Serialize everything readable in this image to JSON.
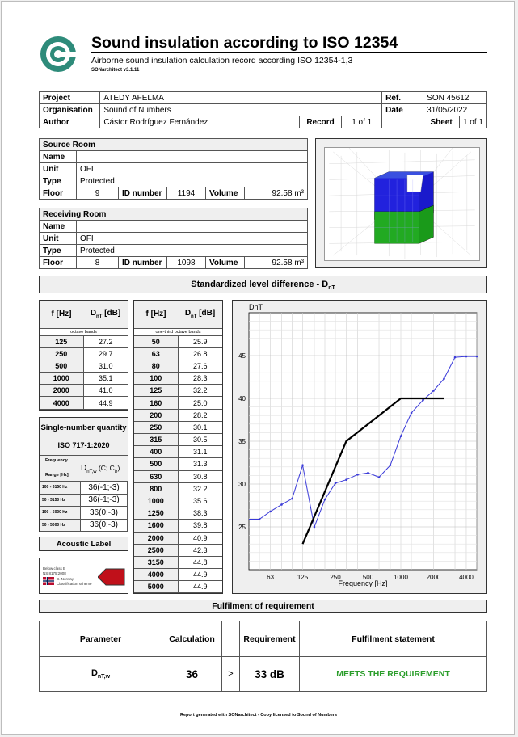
{
  "header": {
    "title": "Sound insulation according to ISO 12354",
    "subtitle": "Airborne sound insulation calculation record according ISO 12354-1,3",
    "version": "SONarchitect v3.1.11"
  },
  "info": {
    "project_label": "Project",
    "project": "ATEDY AFELMA",
    "org_label": "Organisation",
    "org": "Sound of Numbers",
    "author_label": "Author",
    "author": "Cástor Rodríguez Fernández",
    "ref_label": "Ref.",
    "ref": "SON 45612",
    "date_label": "Date",
    "date": "31/05/2022",
    "record_label": "Record",
    "record": "1 of 1",
    "sheet_label": "Sheet",
    "sheet": "1 of 1"
  },
  "source_room": {
    "title": "Source Room",
    "name_label": "Name",
    "name": "",
    "unit_label": "Unit",
    "unit": "OFI",
    "type_label": "Type",
    "type": "Protected",
    "floor_label": "Floor",
    "floor": "9",
    "id_label": "ID number",
    "id": "1194",
    "volume_label": "Volume",
    "volume": "92.58 m³"
  },
  "receiving_room": {
    "title": "Receiving Room",
    "name_label": "Name",
    "name": "",
    "unit_label": "Unit",
    "unit": "OFI",
    "type_label": "Type",
    "type": "Protected",
    "floor_label": "Floor",
    "floor": "8",
    "id_label": "ID number",
    "id": "1098",
    "volume_label": "Volume",
    "volume": "92.58 m³"
  },
  "section_title": "Standardized level difference - D",
  "section_sub": "nT",
  "octave": {
    "f_header": "f [Hz]",
    "d_header": "D",
    "d_sub": "nT",
    "d_unit": " [dB]",
    "band_label": "octave bands",
    "rows": [
      {
        "f": "125",
        "d": "27.2"
      },
      {
        "f": "250",
        "d": "29.7"
      },
      {
        "f": "500",
        "d": "31.0"
      },
      {
        "f": "1000",
        "d": "35.1"
      },
      {
        "f": "2000",
        "d": "41.0"
      },
      {
        "f": "4000",
        "d": "44.9"
      }
    ]
  },
  "third": {
    "f_header": "f [Hz]",
    "d_header": "D",
    "d_sub": "nT",
    "d_unit": " [dB]",
    "band_label": "one-third octave bands",
    "rows": [
      {
        "f": "50",
        "d": "25.9"
      },
      {
        "f": "63",
        "d": "26.8"
      },
      {
        "f": "80",
        "d": "27.6"
      },
      {
        "f": "100",
        "d": "28.3"
      },
      {
        "f": "125",
        "d": "32.2"
      },
      {
        "f": "160",
        "d": "25.0"
      },
      {
        "f": "200",
        "d": "28.2"
      },
      {
        "f": "250",
        "d": "30.1"
      },
      {
        "f": "315",
        "d": "30.5"
      },
      {
        "f": "400",
        "d": "31.1"
      },
      {
        "f": "500",
        "d": "31.3"
      },
      {
        "f": "630",
        "d": "30.8"
      },
      {
        "f": "800",
        "d": "32.2"
      },
      {
        "f": "1000",
        "d": "35.6"
      },
      {
        "f": "1250",
        "d": "38.3"
      },
      {
        "f": "1600",
        "d": "39.8"
      },
      {
        "f": "2000",
        "d": "40.9"
      },
      {
        "f": "2500",
        "d": "42.3"
      },
      {
        "f": "3150",
        "d": "44.8"
      },
      {
        "f": "4000",
        "d": "44.9"
      },
      {
        "f": "5000",
        "d": "44.9"
      }
    ]
  },
  "single_number": {
    "title": "Single-number quantity",
    "standard": "ISO 717-1:2020",
    "freq_label": "Frequency",
    "range_label": "Range [Hz]",
    "quantity_main": "D",
    "quantity_sub": "nT,w",
    "quantity_paren": " (C; C",
    "quantity_tr": "tr",
    "quantity_close": ")",
    "rows": [
      {
        "range": "100 - 3150 Hz",
        "value": "36(-1;-3)"
      },
      {
        "range": "50 - 3150 Hz",
        "value": "36(-1;-3)"
      },
      {
        "range": "100 - 5000 Hz",
        "value": "36(0;-3)"
      },
      {
        "range": "50 - 5000 Hz",
        "value": "36(0;-3)"
      }
    ]
  },
  "acoustic_label": {
    "title": "Acoustic Label",
    "line1": "Below class B",
    "line2": "NS 8175:2008",
    "line3": "D. Norway",
    "line4": "Classification scheme"
  },
  "chart_data": {
    "type": "line",
    "ylabel": "DnT",
    "xlabel": "Frequency [Hz]",
    "x_scale": "log",
    "xlim": [
      40,
      5000
    ],
    "ylim": [
      20,
      50
    ],
    "yticks": [
      25,
      30,
      35,
      40,
      45
    ],
    "xticks": [
      63,
      125,
      250,
      500,
      1000,
      2000,
      4000
    ],
    "grid": true,
    "series": [
      {
        "color": "#3a3ad8",
        "x": [
          40,
          50,
          63,
          80,
          100,
          125,
          160,
          200,
          250,
          315,
          400,
          500,
          630,
          800,
          1000,
          1250,
          1600,
          2000,
          2500,
          3150,
          4000,
          5000
        ],
        "values": [
          25.9,
          25.9,
          26.8,
          27.6,
          28.3,
          32.2,
          25.0,
          28.2,
          30.1,
          30.5,
          31.1,
          31.3,
          30.8,
          32.2,
          35.6,
          38.3,
          39.8,
          40.9,
          42.3,
          44.8,
          44.9,
          44.9
        ]
      },
      {
        "color": "#000000",
        "x": [
          125,
          315,
          630,
          1000,
          2500
        ],
        "values": [
          23,
          35,
          38,
          40,
          40
        ]
      }
    ]
  },
  "fulfilment": {
    "title": "Fulfilment of requirement",
    "param_header": "Parameter",
    "calc_header": "Calculation",
    "req_header": "Requirement",
    "stmt_header": "Fulfilment statement",
    "param_main": "D",
    "param_sub": "nT,w",
    "calc": "36",
    "op": ">",
    "req": "33 dB",
    "stmt": "MEETS THE REQUIREMENT",
    "stmt_color": "#2a9d2a"
  },
  "footer": "Report generated with SONarchitect - Copy licensed to Sound of Numbers"
}
